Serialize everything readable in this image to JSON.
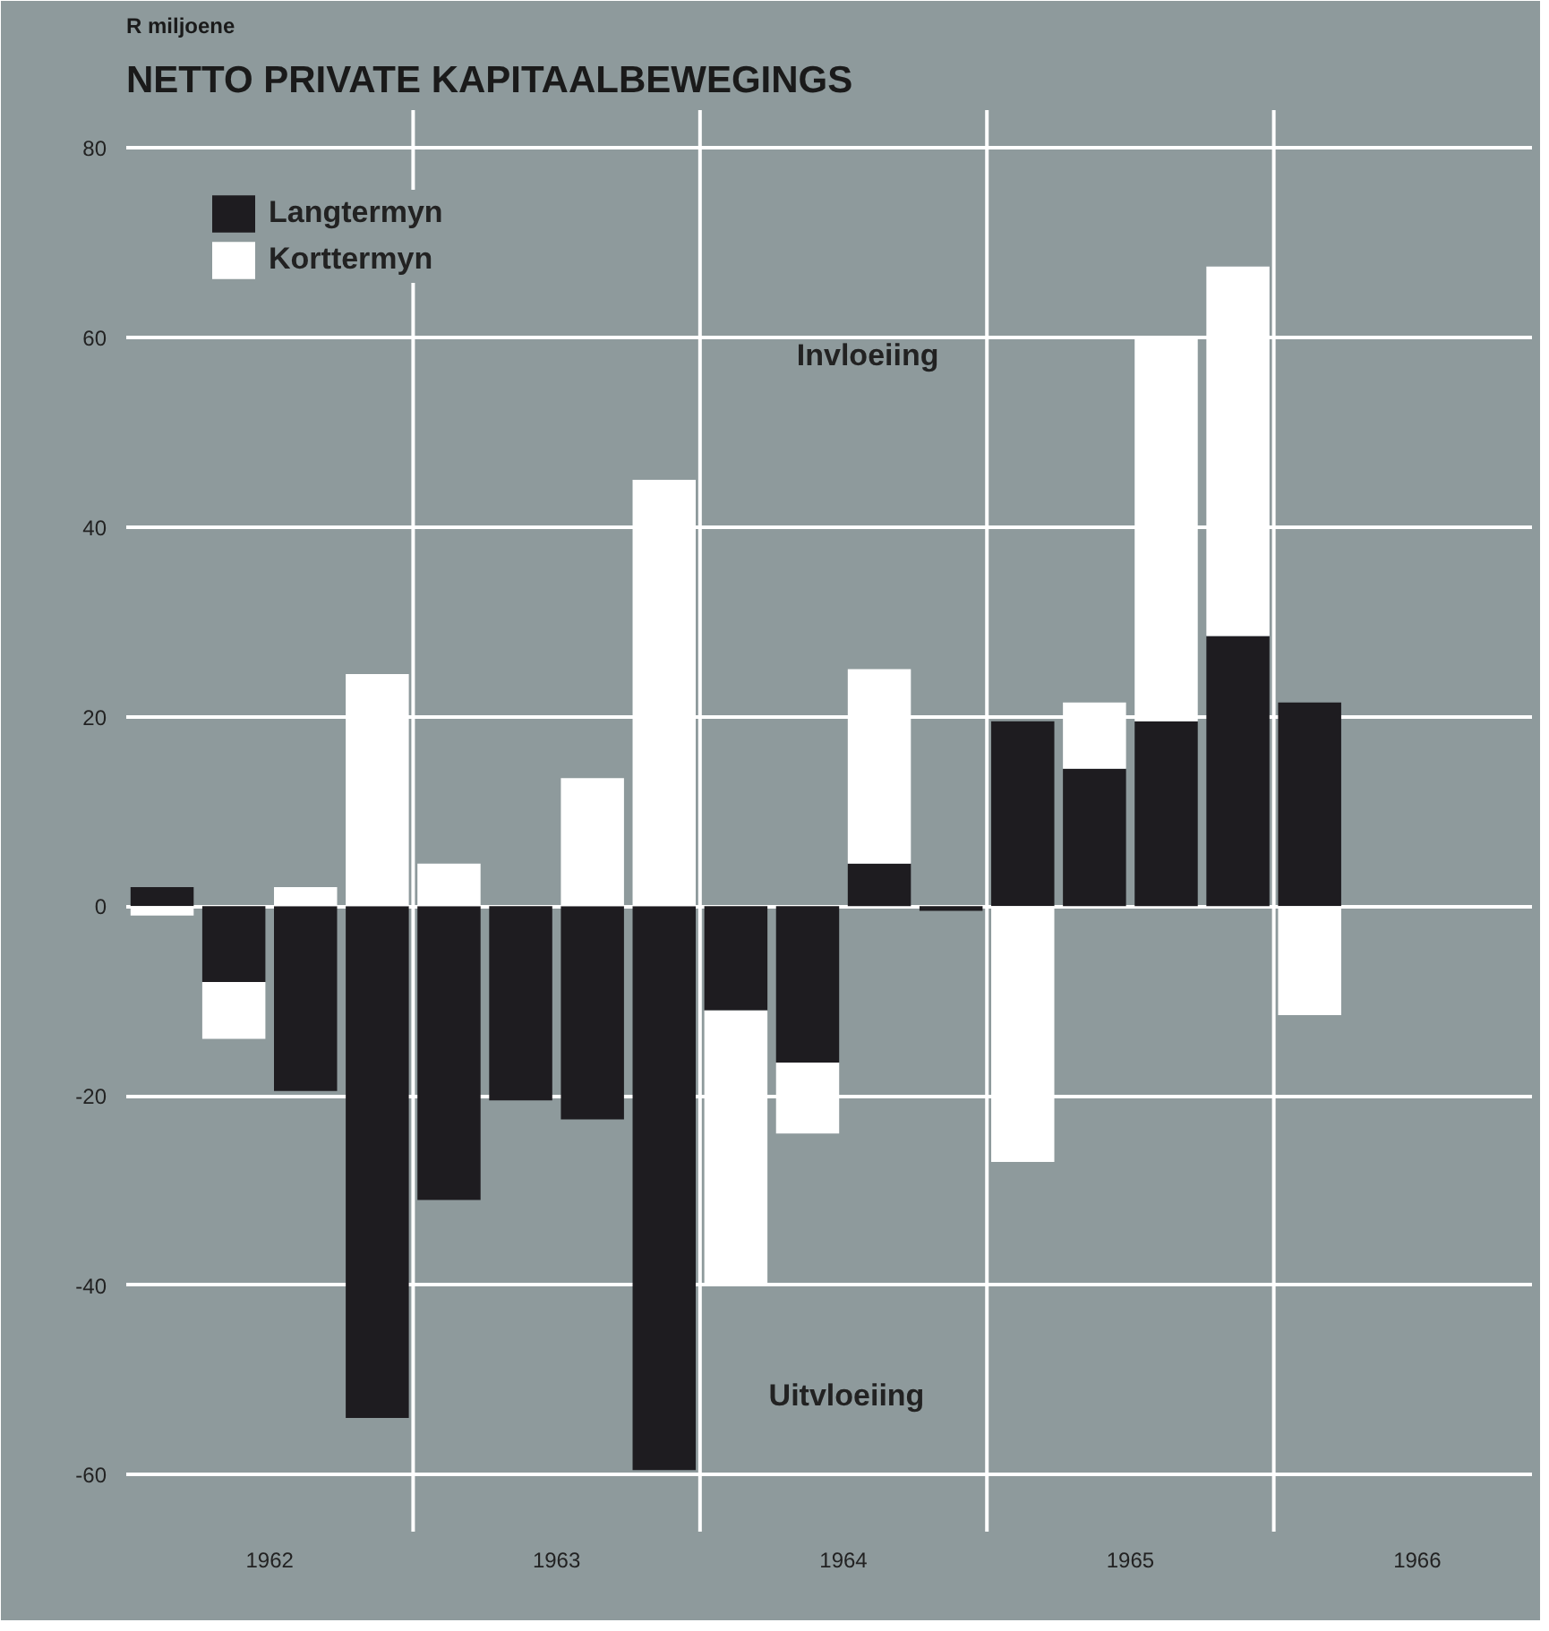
{
  "chart_data": {
    "type": "bar",
    "title": "NETTO PRIVATE KAPITAALBEWEGINGS",
    "ylabel": "R miljoene",
    "stacked": true,
    "x": [
      1962.125,
      1962.375,
      1962.625,
      1962.875,
      1963.125,
      1963.375,
      1963.625,
      1963.875,
      1964.125,
      1964.375,
      1964.625,
      1964.875,
      1965.125,
      1965.375,
      1965.625,
      1965.875,
      1966.125
    ],
    "series": [
      {
        "name": "Langtermyn",
        "color": "#1e1c20",
        "values": [
          2,
          -8,
          -19.5,
          -54,
          -31,
          -20.5,
          -22.5,
          -59.5,
          -11,
          -16.5,
          4.5,
          -0.5,
          19.5,
          14.5,
          19.5,
          28.5,
          21.5
        ]
      },
      {
        "name": "Korttermyn",
        "color": "#ffffff",
        "values": [
          -1,
          -6,
          2,
          24.5,
          4.5,
          null,
          13.5,
          45,
          -29,
          -7.5,
          20.5,
          null,
          -27,
          7,
          40.5,
          39,
          -11.5
        ]
      }
    ],
    "xlim": [
      1962,
      1966.9
    ],
    "xticks": [
      {
        "value": 1962.5,
        "label": "1962"
      },
      {
        "value": 1963.5,
        "label": "1963"
      },
      {
        "value": 1964.5,
        "label": "1964"
      },
      {
        "value": 1965.5,
        "label": "1965"
      },
      {
        "value": 1966.5,
        "label": "1966"
      }
    ],
    "ylim": [
      -66,
      84
    ],
    "yticks": [
      -60,
      -40,
      -20,
      0,
      20,
      40,
      60,
      80
    ],
    "ref_lines": [
      {
        "axis": "x",
        "value": 1963,
        "label": null,
        "color": "#ffffff"
      },
      {
        "axis": "x",
        "value": 1964,
        "label": null,
        "color": "#ffffff"
      },
      {
        "axis": "x",
        "value": 1965,
        "label": null,
        "color": "#ffffff"
      },
      {
        "axis": "x",
        "value": 1966,
        "label": null,
        "color": "#ffffff"
      }
    ],
    "annotations": [
      "Invloeiing",
      "Uitvloeiing"
    ],
    "grid": "y",
    "legend": "top left"
  }
}
